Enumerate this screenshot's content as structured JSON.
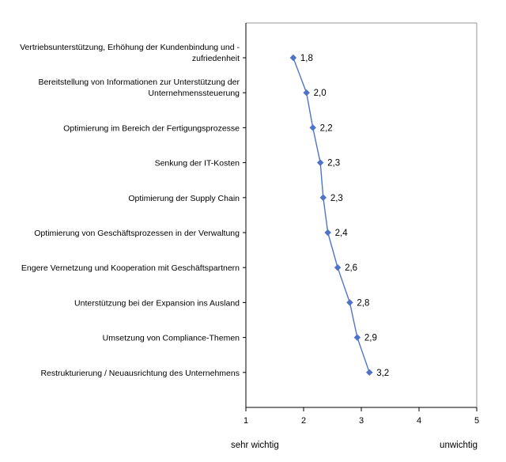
{
  "chart_data": {
    "type": "line",
    "orientation": "horizontal",
    "categories": [
      [
        "Vertriebsunterstützung, Erhöhung der Kundenbindung und -",
        "zufriedenheit"
      ],
      [
        "Bereitstellung von Informationen zur Unterstützung der",
        "Unternehmenssteuerung"
      ],
      [
        "Optimierung im Bereich der Fertigungsprozesse"
      ],
      [
        "Senkung der IT-Kosten"
      ],
      [
        "Optimierung der Supply Chain"
      ],
      [
        "Optimierung von Geschäftsprozessen in der Verwaltung"
      ],
      [
        "Engere Vernetzung und Kooperation mit Geschäftspartnern"
      ],
      [
        "Unterstützung bei der Expansion ins Ausland"
      ],
      [
        "Umsetzung von Compliance-Themen"
      ],
      [
        "Restrukturierung / Neuausrichtung des Unternehmens"
      ]
    ],
    "values": [
      1.8,
      2.0,
      2.2,
      2.3,
      2.3,
      2.4,
      2.6,
      2.8,
      2.9,
      3.2
    ],
    "data_labels": [
      "1,8",
      "2,0",
      "2,2",
      "2,3",
      "2,3",
      "2,4",
      "2,6",
      "2,8",
      "2,9",
      "3,2"
    ],
    "plotted_values": [
      1.82,
      2.05,
      2.16,
      2.29,
      2.34,
      2.42,
      2.59,
      2.8,
      2.93,
      3.14
    ],
    "xlim": [
      1,
      5
    ],
    "xticks": [
      "1",
      "2",
      "3",
      "4",
      "5"
    ],
    "x_axis_left_label": "sehr wichtig",
    "x_axis_right_label": "unwichtig",
    "series_color": "#4f74c7",
    "marker": "diamond",
    "grid": false,
    "legend": "none"
  }
}
